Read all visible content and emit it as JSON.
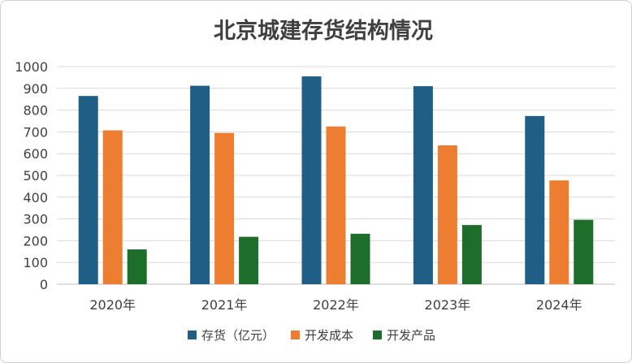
{
  "chart_data": {
    "type": "bar",
    "title": "北京城建存货结构情况",
    "categories": [
      "2020年",
      "2021年",
      "2022年",
      "2023年",
      "2024年"
    ],
    "series": [
      {
        "name": "存货（亿元）",
        "color": "#1f5f85",
        "values": [
          865,
          912,
          955,
          910,
          773
        ]
      },
      {
        "name": "开发成本",
        "color": "#ed7d31",
        "values": [
          707,
          695,
          725,
          638,
          477
        ]
      },
      {
        "name": "开发产品",
        "color": "#1e6e2b",
        "values": [
          160,
          218,
          232,
          272,
          296
        ]
      }
    ],
    "ylim": [
      0,
      1000
    ],
    "yticks": [
      0,
      100,
      200,
      300,
      400,
      500,
      600,
      700,
      800,
      900,
      1000
    ],
    "grid": true,
    "legend_position": "bottom"
  }
}
